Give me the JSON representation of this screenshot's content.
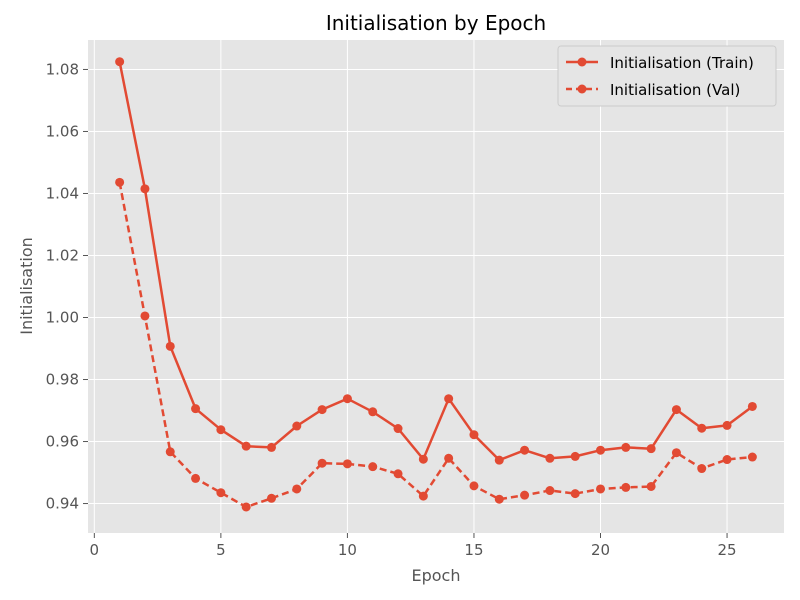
{
  "chart_data": {
    "type": "line",
    "title": "Initialisation by Epoch",
    "xlabel": "Epoch",
    "ylabel": "Initialisation",
    "xlim": [
      -0.25,
      27.25
    ],
    "ylim": [
      0.9305,
      1.0895
    ],
    "xticks": [
      0,
      5,
      10,
      15,
      20,
      25
    ],
    "yticks": [
      0.94,
      0.96,
      0.98,
      1.0,
      1.02,
      1.04,
      1.06,
      1.08
    ],
    "ytick_labels": [
      "0.94",
      "0.96",
      "0.98",
      "1.00",
      "1.02",
      "1.04",
      "1.06",
      "1.08"
    ],
    "grid": true,
    "legend_position": "top-right",
    "x": [
      1,
      2,
      3,
      4,
      5,
      6,
      7,
      8,
      9,
      10,
      11,
      12,
      13,
      14,
      15,
      16,
      17,
      18,
      19,
      20,
      21,
      22,
      23,
      24,
      25,
      26
    ],
    "series": [
      {
        "name": "Initialisation (Train)",
        "style": "solid",
        "color": "#E24A33",
        "values": [
          1.0825,
          1.0415,
          0.9907,
          0.9706,
          0.9638,
          0.9585,
          0.9581,
          0.965,
          0.9703,
          0.9738,
          0.9696,
          0.9642,
          0.9543,
          0.9738,
          0.9622,
          0.954,
          0.9572,
          0.9546,
          0.9552,
          0.9572,
          0.9581,
          0.9577,
          0.9703,
          0.9643,
          0.9652,
          0.9713
        ]
      },
      {
        "name": "Initialisation (Val)",
        "style": "dashed",
        "color": "#E24A33",
        "values": [
          1.0436,
          1.0005,
          0.9567,
          0.9481,
          0.9435,
          0.9389,
          0.9417,
          0.9447,
          0.953,
          0.9528,
          0.9519,
          0.9496,
          0.9424,
          0.9546,
          0.9457,
          0.9414,
          0.9427,
          0.9442,
          0.9432,
          0.9447,
          0.9452,
          0.9455,
          0.9564,
          0.9513,
          0.9542,
          0.955
        ]
      }
    ]
  },
  "style": {
    "plot_background": "#E5E5E5",
    "grid_color": "#FFFFFF",
    "line_color": "#E24A33"
  }
}
